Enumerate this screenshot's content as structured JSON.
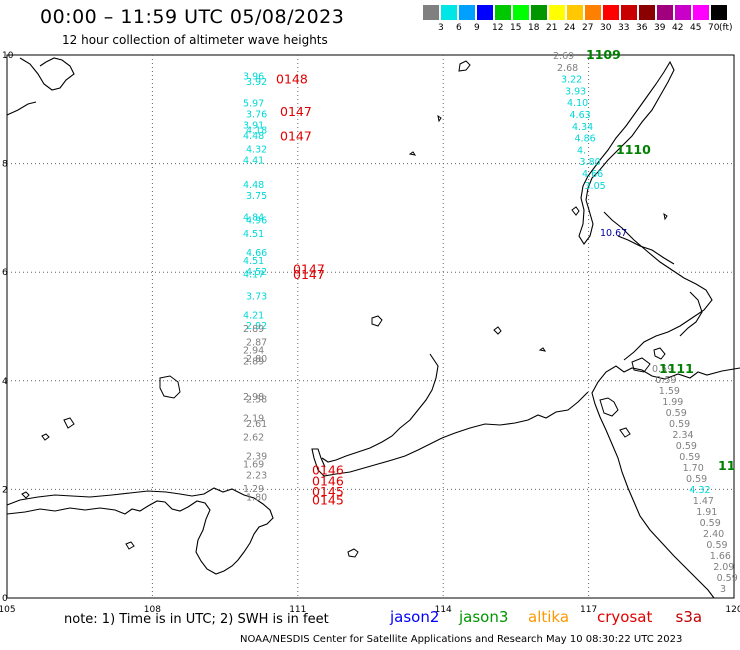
{
  "header": {
    "title": "00:00 – 11:59 UTC 05/08/2023",
    "subtitle": "12 hour collection of altimeter wave heights"
  },
  "scale": {
    "unit": "(ft)",
    "colors": [
      "#808080",
      "#00e5e5",
      "#00a0ff",
      "#0000ff",
      "#00c800",
      "#00ff00",
      "#009600",
      "#ffff00",
      "#ffc800",
      "#ff8000",
      "#ff0000",
      "#c80000",
      "#8b0000",
      "#a0007d",
      "#c800c8",
      "#ff00ff",
      "#000000"
    ],
    "labels": [
      "",
      "3",
      "6",
      "9",
      "12",
      "15",
      "18",
      "21",
      "24",
      "27",
      "30",
      "33",
      "36",
      "39",
      "42",
      "45",
      "70"
    ]
  },
  "axes": {
    "x_ticks": [
      "105",
      "108",
      "111",
      "114",
      "117",
      "120"
    ],
    "y_ticks": [
      "0",
      "2",
      "4",
      "6",
      "8",
      "10"
    ]
  },
  "tracks": [
    {
      "pass": "0148",
      "pass_color": "#e00000",
      "pass_lat": 9.55,
      "readings": [
        {
          "lat": 9.55,
          "lon_off": 0.0,
          "val": "3.96",
          "color": "#00d8d8"
        },
        {
          "lat": 9.45,
          "lon_off": 0.0,
          "val": "3.92",
          "color": "#00d8d8"
        }
      ]
    },
    {
      "pass": "0147",
      "pass_color": "#e00000",
      "pass_lat": 8.95,
      "readings": [
        {
          "lat": 9.05,
          "lon_off": 0.0,
          "val": "5.97",
          "color": "#00d8d8"
        },
        {
          "lat": 8.85,
          "lon_off": 0.0,
          "val": "3.76",
          "color": "#00d8d8"
        },
        {
          "lat": 8.65,
          "lon_off": 0.0,
          "val": "3.91",
          "color": "#00d8d8"
        },
        {
          "lat": 8.55,
          "lon_off": 0.0,
          "val": "4.18",
          "color": "#00d8d8"
        },
        {
          "lat": 8.45,
          "lon_off": 0.0,
          "val": "4.48",
          "color": "#00d8d8"
        },
        {
          "lat": 8.2,
          "lon_off": 0.0,
          "val": "4.32",
          "color": "#00d8d8"
        },
        {
          "lat": 8.0,
          "lon_off": 0.0,
          "val": "4.41",
          "color": "#00d8d8"
        }
      ]
    },
    {
      "pass": "0147",
      "pass_color": "#e00000",
      "pass_lat": 8.5,
      "readings": []
    },
    {
      "pass": "0147",
      "pass_color": "#e00000",
      "pass_lat": 5.95,
      "readings": [
        {
          "lat": 7.55,
          "lon_off": 0.0,
          "val": "4.48",
          "color": "#00d8d8"
        },
        {
          "lat": 7.35,
          "lon_off": 0.0,
          "val": "3.75",
          "color": "#00d8d8"
        },
        {
          "lat": 6.95,
          "lon_off": 0.0,
          "val": "4.84",
          "color": "#00d8d8"
        },
        {
          "lat": 6.9,
          "lon_off": 0.0,
          "val": "4.96",
          "color": "#00d8d8"
        },
        {
          "lat": 6.65,
          "lon_off": 0.0,
          "val": "4.51",
          "color": "#00d8d8"
        },
        {
          "lat": 6.3,
          "lon_off": 0.0,
          "val": "4.66",
          "color": "#00d8d8"
        },
        {
          "lat": 6.15,
          "lon_off": 0.0,
          "val": "4.51",
          "color": "#00d8d8"
        },
        {
          "lat": 5.95,
          "lon_off": 0.0,
          "val": "4.52",
          "color": "#00d8d8"
        },
        {
          "lat": 5.9,
          "lon_off": 0.0,
          "val": "4.17",
          "color": "#00d8d8"
        },
        {
          "lat": 5.5,
          "lon_off": 0.0,
          "val": "3.73",
          "color": "#00d8d8"
        },
        {
          "lat": 5.15,
          "lon_off": 0.0,
          "val": "4.21",
          "color": "#00d8d8"
        },
        {
          "lat": 4.95,
          "lon_off": 0.0,
          "val": "2.92",
          "color": "#00d8d8"
        },
        {
          "lat": 4.9,
          "lon_off": 0.0,
          "val": "2.89",
          "color": "#808080"
        },
        {
          "lat": 4.65,
          "lon_off": 0.0,
          "val": "2.87",
          "color": "#808080"
        },
        {
          "lat": 4.5,
          "lon_off": 0.0,
          "val": "2.94",
          "color": "#808080"
        },
        {
          "lat": 4.35,
          "lon_off": 0.0,
          "val": "2.80",
          "color": "#808080"
        },
        {
          "lat": 4.3,
          "lon_off": 0.0,
          "val": "2.89",
          "color": "#808080"
        }
      ]
    },
    {
      "pass": "0147",
      "pass_color": "#e00000",
      "pass_lat": 6.05,
      "readings": []
    },
    {
      "pass": "0146",
      "pass_color": "#e00000",
      "pass_lat": 2.35,
      "readings": [
        {
          "lat": 3.65,
          "lon_off": 0.0,
          "val": "2.98",
          "color": "#808080"
        },
        {
          "lat": 3.6,
          "lon_off": 0.0,
          "val": "2.58",
          "color": "#808080"
        },
        {
          "lat": 3.25,
          "lon_off": 0.0,
          "val": "2.19",
          "color": "#808080"
        },
        {
          "lat": 3.15,
          "lon_off": 0.0,
          "val": "2.61",
          "color": "#808080"
        },
        {
          "lat": 2.9,
          "lon_off": 0.0,
          "val": "2.62",
          "color": "#808080"
        },
        {
          "lat": 2.55,
          "lon_off": 0.0,
          "val": "2.39",
          "color": "#808080"
        },
        {
          "lat": 2.4,
          "lon_off": 0.0,
          "val": "1.69",
          "color": "#808080"
        },
        {
          "lat": 2.2,
          "lon_off": 0.0,
          "val": "2.23",
          "color": "#808080"
        },
        {
          "lat": 1.95,
          "lon_off": 0.0,
          "val": "1.29",
          "color": "#808080"
        },
        {
          "lat": 1.8,
          "lon_off": 0.0,
          "val": "1.80",
          "color": "#808080"
        }
      ]
    },
    {
      "pass": "0146",
      "pass_color": "#e00000",
      "pass_lat": 2.15,
      "readings": []
    },
    {
      "pass": "0145",
      "pass_color": "#e00000",
      "pass_lat": 1.95,
      "readings": []
    },
    {
      "pass": "0145",
      "pass_color": "#e00000",
      "pass_lat": 1.8,
      "readings": []
    }
  ],
  "track2": {
    "passes": [
      {
        "label": "1109",
        "color": "#008000"
      },
      {
        "label": "1110",
        "color": "#008000"
      },
      {
        "label": "1111",
        "color": "#008000"
      },
      {
        "label": "11",
        "color": "#008000"
      }
    ],
    "readings": [
      {
        "val": "2.69",
        "color": "#808080"
      },
      {
        "val": "2.68",
        "color": "#808080"
      },
      {
        "val": "3.22",
        "color": "#00d8d8"
      },
      {
        "val": "3.93",
        "color": "#00d8d8"
      },
      {
        "val": "4.10",
        "color": "#00d8d8"
      },
      {
        "val": "4.63",
        "color": "#00d8d8"
      },
      {
        "val": "4.34",
        "color": "#00d8d8"
      },
      {
        "val": "4.86",
        "color": "#00d8d8"
      },
      {
        "val": "4.",
        "color": "#00d8d8"
      },
      {
        "val": "3.80",
        "color": "#00d8d8"
      },
      {
        "val": "4.66",
        "color": "#00d8d8"
      },
      {
        "val": "3.05",
        "color": "#00d8d8"
      },
      {
        "val": "10.67",
        "color": "#0000a0"
      },
      {
        "val": "0.59",
        "color": "#808080"
      },
      {
        "val": "0.59",
        "color": "#808080"
      },
      {
        "val": "1.59",
        "color": "#808080"
      },
      {
        "val": "1.99",
        "color": "#808080"
      },
      {
        "val": "0.59",
        "color": "#808080"
      },
      {
        "val": "0.59",
        "color": "#808080"
      },
      {
        "val": "2.34",
        "color": "#808080"
      },
      {
        "val": "0.59",
        "color": "#808080"
      },
      {
        "val": "0.59",
        "color": "#808080"
      },
      {
        "val": "1.70",
        "color": "#808080"
      },
      {
        "val": "0.59",
        "color": "#808080"
      },
      {
        "val": "4.32",
        "color": "#00d8d8"
      },
      {
        "val": "1.47",
        "color": "#808080"
      },
      {
        "val": "1.91",
        "color": "#808080"
      },
      {
        "val": "0.59",
        "color": "#808080"
      },
      {
        "val": "2.40",
        "color": "#808080"
      },
      {
        "val": "0.59",
        "color": "#808080"
      },
      {
        "val": "1.66",
        "color": "#808080"
      },
      {
        "val": "2.09",
        "color": "#808080"
      },
      {
        "val": "0.59",
        "color": "#808080"
      },
      {
        "val": "3",
        "color": "#808080"
      }
    ]
  },
  "footer": {
    "note": "note:  1) Time is in UTC;  2) SWH is in feet",
    "satellites": [
      {
        "name": "jason2",
        "color": "#0000ff"
      },
      {
        "name": "jason3",
        "color": "#009600"
      },
      {
        "name": "altika",
        "color": "#ff9900"
      },
      {
        "name": "cryosat",
        "color": "#e00000"
      },
      {
        "name": "s3a",
        "color": "#c00000"
      }
    ],
    "credit": "NOAA/NESDIS Center for Satellite Applications and Research    May 10 08:30:22 UTC 2023"
  }
}
